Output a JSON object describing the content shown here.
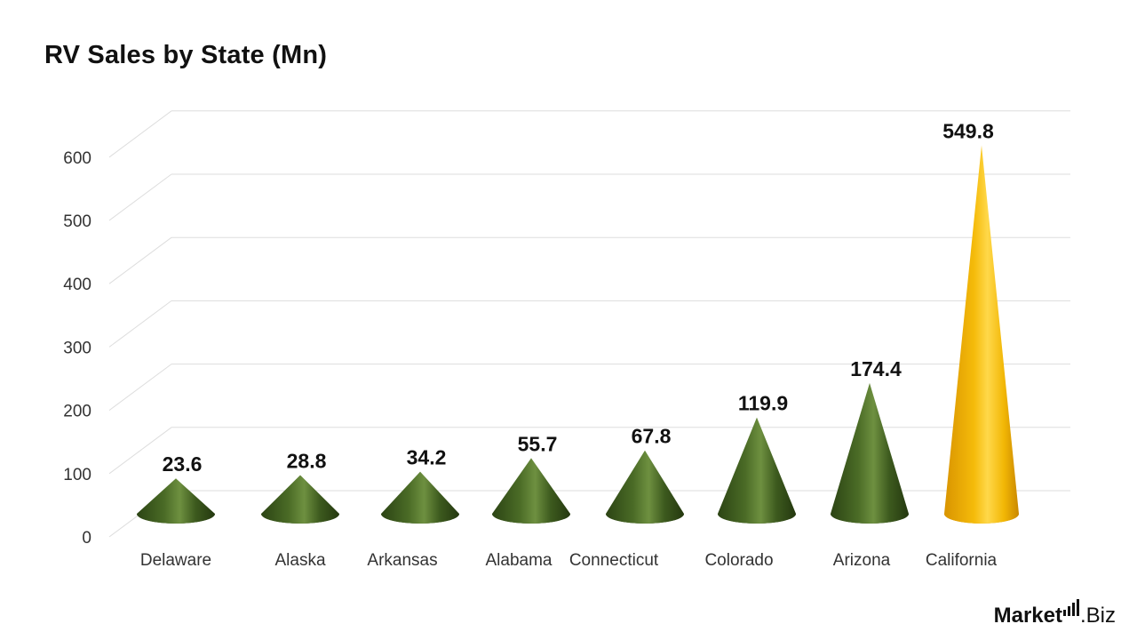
{
  "title": "RV Sales by State (Mn)",
  "brand": {
    "name_a": "Market",
    "name_b": ".Biz"
  },
  "chart_data": {
    "type": "bar",
    "shape": "cone",
    "categories": [
      "Delaware",
      "Alaska",
      "Arkansas",
      "Alabama",
      "Connecticut",
      "Colorado",
      "Arizona",
      "California"
    ],
    "values": [
      23.6,
      28.8,
      34.2,
      55.7,
      67.8,
      119.9,
      174.4,
      549.8
    ],
    "value_labels": [
      "23.6",
      "28.8",
      "34.2",
      "55.7",
      "67.8",
      "119.9",
      "174.4",
      "549.8"
    ],
    "title": "RV Sales by State (Mn)",
    "ylim": [
      0,
      600
    ],
    "yticks": [
      0,
      100,
      200,
      300,
      400,
      500,
      600
    ],
    "grid": true,
    "legend": "none",
    "colors": {
      "default": "#3d5a1e",
      "highlight": "#f2b705"
    },
    "highlight_category": "California"
  }
}
